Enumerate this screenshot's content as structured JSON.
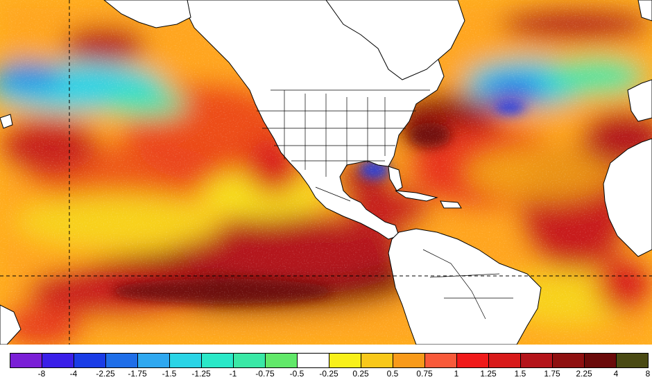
{
  "map": {
    "colors": {
      "ocean_base": "#ff9a1e",
      "land": "#ffffff",
      "borders": "#000000",
      "grid_lines": "#000000"
    }
  },
  "legend": {
    "colors": [
      "#7a1fd6",
      "#3a1fe8",
      "#1a3ce6",
      "#1f6ee8",
      "#2fa8f0",
      "#2ad4e6",
      "#2ae8c8",
      "#3ae8a6",
      "#62e86a",
      "#ffffff",
      "#f8f01a",
      "#f8c81a",
      "#f89a1a",
      "#f85a3a",
      "#f01a1a",
      "#d81a1a",
      "#b4141a",
      "#8e1010",
      "#6a0a0a",
      "#4a4a14"
    ],
    "labels": [
      "-8",
      "-4",
      "-2.25",
      "-1.75",
      "-1.5",
      "-1.25",
      "-1",
      "-0.75",
      "-0.5",
      "-0.25",
      "0.25",
      "0.5",
      "0.75",
      "1",
      "1.25",
      "1.5",
      "1.75",
      "2.25",
      "4",
      "8"
    ]
  }
}
